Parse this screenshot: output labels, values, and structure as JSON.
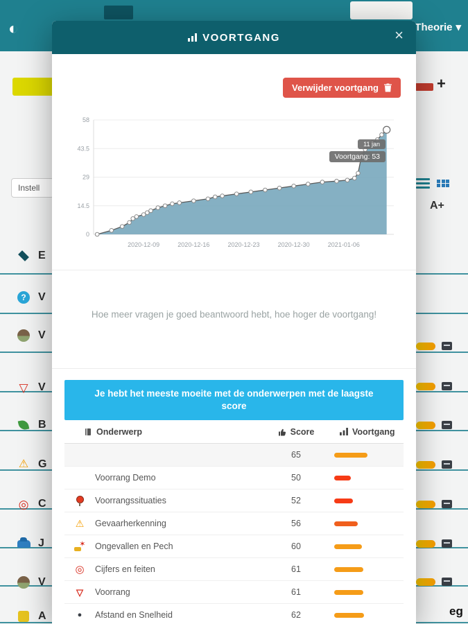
{
  "colors": {
    "accent_teal": "#1f808f",
    "modal_header": "#0e5f6c",
    "table_header_blue": "#29b6ea",
    "delete_red": "#df5449",
    "area_fill": "#78a7bd",
    "line": "#5a5a5a",
    "bar_low": "#f63b16",
    "bar_mid": "#f05f1d",
    "bar_high": "#f59c18"
  },
  "glyphs": {
    "contrast": "◐",
    "caret": "▾",
    "close": "×",
    "plus": "+",
    "warning": "⚠",
    "target": "◎",
    "give_way": "▽",
    "question": "?",
    "burst": "✶",
    "dot": "●"
  },
  "topbar": {
    "menu_label": "Theorie"
  },
  "background": {
    "settings_button": "Instell",
    "font_size_button": "A+",
    "bottom_partial_label": "eg",
    "sidebar_items": [
      {
        "letter": "E",
        "icon": "graduation-cap"
      },
      {
        "letter": "V",
        "icon": "question-circle"
      },
      {
        "letter": "V",
        "icon": "avatar"
      },
      {
        "letter": "V",
        "icon": "give-way-sign"
      },
      {
        "letter": "B",
        "icon": "leaf"
      },
      {
        "letter": "G",
        "icon": "warning-triangle"
      },
      {
        "letter": "C",
        "icon": "target"
      },
      {
        "letter": "J",
        "icon": "car"
      },
      {
        "letter": "V",
        "icon": "avatar"
      },
      {
        "letter": "A",
        "icon": "yellow-tile"
      }
    ]
  },
  "modal": {
    "title": "VOORTGANG",
    "delete_button": "Verwijder voortgang",
    "note": "Hoe meer vragen je goed beantwoord hebt, hoe hoger de voortgang!",
    "table": {
      "banner": "Je hebt het meeste moeite met de onderwerpen met de laagste score",
      "columns": [
        "Onderwerp",
        "Score",
        "Voortgang"
      ],
      "rows": [
        {
          "topic": "",
          "score": 65,
          "icon": "none"
        },
        {
          "topic": "Voorrang Demo",
          "score": 50,
          "icon": "none"
        },
        {
          "topic": "Voorrangssituaties",
          "score": 52,
          "icon": "traffic-pin"
        },
        {
          "topic": "Gevaarherkenning",
          "score": 56,
          "icon": "warning-triangle"
        },
        {
          "topic": "Ongevallen en Pech",
          "score": 60,
          "icon": "crash"
        },
        {
          "topic": "Cijfers en feiten",
          "score": 61,
          "icon": "target"
        },
        {
          "topic": "Voorrang",
          "score": 61,
          "icon": "give-way-sign"
        },
        {
          "topic": "Afstand en Snelheid",
          "score": 62,
          "icon": "speedometer"
        }
      ]
    }
  },
  "chart_data": {
    "type": "area",
    "title": "",
    "xlabel": "",
    "ylabel": "",
    "series_name": "Voortgang",
    "ylim": [
      0,
      58
    ],
    "xlim": [
      -4,
      38
    ],
    "y_ticks": [
      0,
      14.5,
      29,
      43.5,
      58
    ],
    "x_ticks": [
      {
        "x": 3,
        "label": "2020-12-09"
      },
      {
        "x": 10,
        "label": "2020-12-16"
      },
      {
        "x": 17,
        "label": "2020-12-23"
      },
      {
        "x": 24,
        "label": "2020-12-30"
      },
      {
        "x": 31,
        "label": "2021-01-06"
      }
    ],
    "points": [
      [
        -3.5,
        0
      ],
      [
        -1.5,
        2
      ],
      [
        0,
        4
      ],
      [
        1,
        6
      ],
      [
        1.5,
        8
      ],
      [
        2,
        9
      ],
      [
        3,
        10
      ],
      [
        3.5,
        11
      ],
      [
        4,
        12
      ],
      [
        5,
        13.5
      ],
      [
        6,
        14.5
      ],
      [
        7,
        15.5
      ],
      [
        8,
        16
      ],
      [
        10,
        17
      ],
      [
        12,
        18
      ],
      [
        13,
        19
      ],
      [
        14,
        19.5
      ],
      [
        16,
        20.5
      ],
      [
        18,
        21.5
      ],
      [
        20,
        22.5
      ],
      [
        22,
        23.5
      ],
      [
        24,
        24.5
      ],
      [
        26,
        25.5
      ],
      [
        28,
        26.5
      ],
      [
        30,
        27
      ],
      [
        31.5,
        27.5
      ],
      [
        32.5,
        28.5
      ],
      [
        33,
        31
      ],
      [
        33.5,
        40
      ],
      [
        34,
        43
      ],
      [
        34.5,
        45
      ],
      [
        35,
        46.5
      ],
      [
        35.7,
        48
      ],
      [
        36.3,
        50.5
      ],
      [
        37,
        53
      ]
    ],
    "last_point_label": {
      "date": "11 jan",
      "value_label": "Voortgang: 53"
    },
    "grid": true,
    "legend": false
  }
}
